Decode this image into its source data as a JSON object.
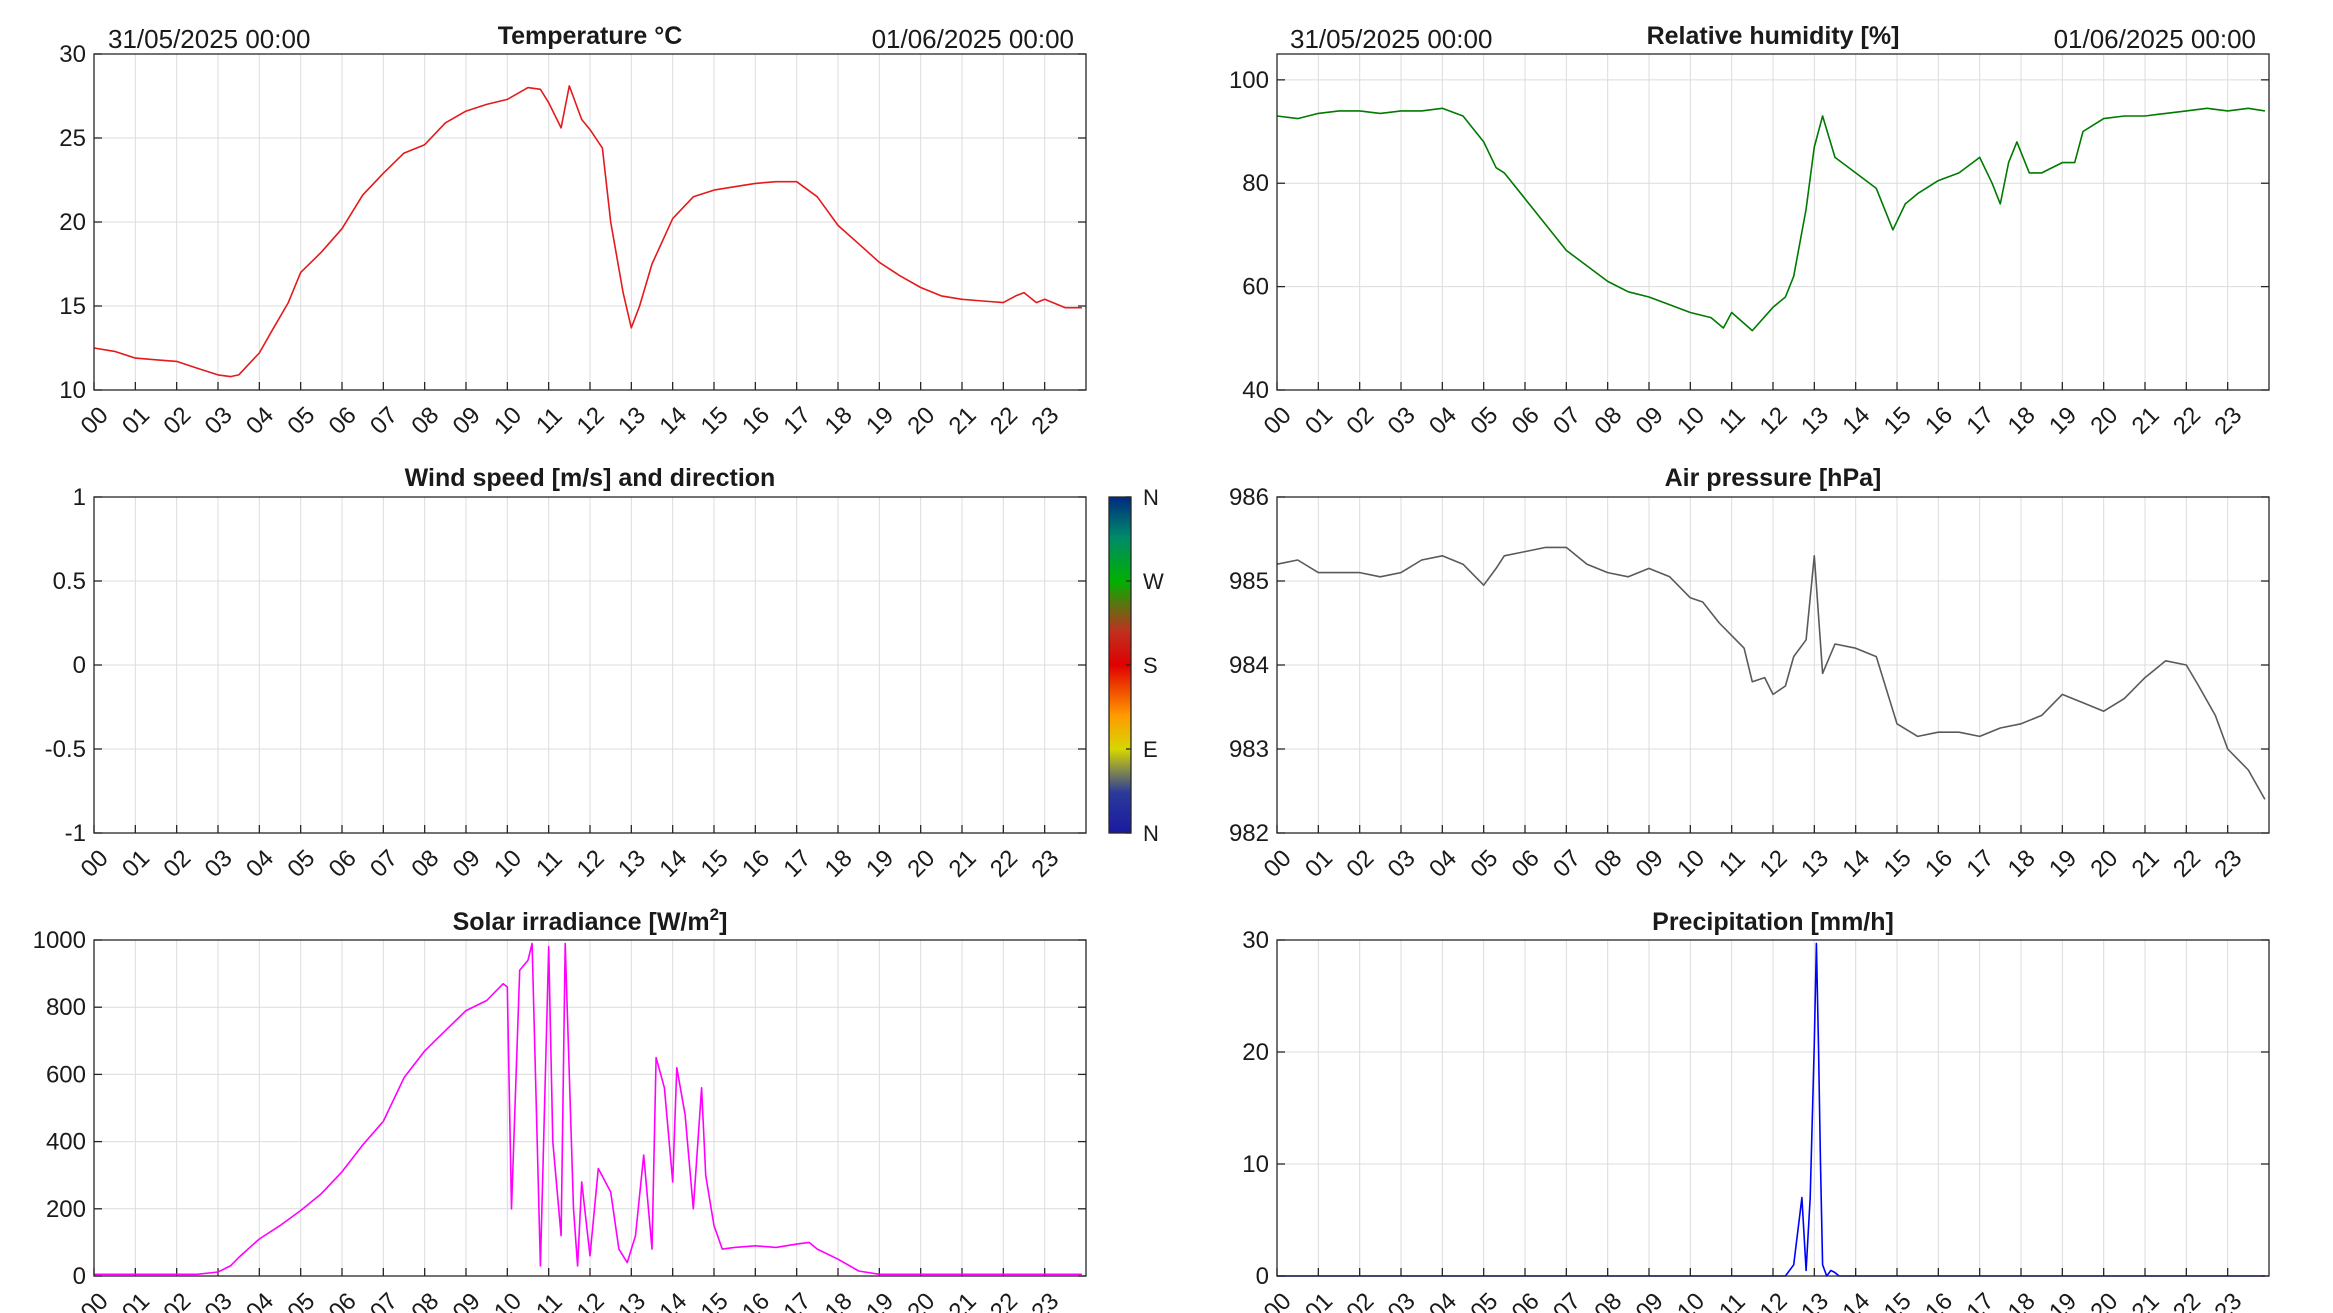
{
  "header": {
    "left_start": "31/05/2025 00:00",
    "left_end": "01/06/2025 00:00",
    "right_start": "31/05/2025 00:00",
    "right_end": "01/06/2025 00:00"
  },
  "hours": [
    "00",
    "01",
    "02",
    "03",
    "04",
    "05",
    "06",
    "07",
    "08",
    "09",
    "10",
    "11",
    "12",
    "13",
    "14",
    "15",
    "16",
    "17",
    "18",
    "19",
    "20",
    "21",
    "22",
    "23"
  ],
  "compass": [
    "N",
    "E",
    "S",
    "W",
    "N"
  ],
  "chart_data": [
    {
      "id": "temp",
      "type": "line",
      "title": "Temperature °C",
      "color": "#e41a1c",
      "ylim": [
        10,
        30
      ],
      "yticks": [
        10,
        15,
        20,
        25,
        30
      ],
      "yticklabels": [
        "10",
        "15",
        "20",
        "25",
        "30"
      ],
      "x_unit": "hour",
      "x": [
        0,
        0.5,
        1,
        1.5,
        2,
        2.5,
        3,
        3.3,
        3.5,
        4,
        4.3,
        4.7,
        5,
        5.5,
        6,
        6.5,
        7,
        7.5,
        8,
        8.5,
        9,
        9.5,
        10,
        10.5,
        10.8,
        11,
        11.3,
        11.5,
        11.8,
        12,
        12.3,
        12.5,
        12.8,
        13,
        13.2,
        13.5,
        14,
        14.5,
        15,
        15.5,
        16,
        16.5,
        17,
        17.5,
        18,
        18.5,
        19,
        19.5,
        20,
        20.5,
        21,
        21.5,
        22,
        22.3,
        22.5,
        22.8,
        23,
        23.5,
        23.9
      ],
      "y": [
        12.5,
        12.3,
        11.9,
        11.8,
        11.7,
        11.3,
        10.9,
        10.8,
        10.9,
        12.2,
        13.5,
        15.2,
        17.0,
        18.2,
        19.6,
        21.6,
        22.9,
        24.1,
        24.6,
        25.9,
        26.6,
        27.0,
        27.3,
        28.0,
        27.9,
        27.1,
        25.6,
        28.1,
        26.1,
        25.5,
        24.4,
        20.0,
        15.8,
        13.7,
        15.0,
        17.5,
        20.2,
        21.5,
        21.9,
        22.1,
        22.3,
        22.4,
        22.4,
        21.5,
        19.8,
        18.7,
        17.6,
        16.8,
        16.1,
        15.6,
        15.4,
        15.3,
        15.2,
        15.6,
        15.8,
        15.2,
        15.4,
        14.9,
        14.9
      ]
    },
    {
      "id": "humidity",
      "type": "line",
      "title": "Relative humidity [%]",
      "color": "#007a00",
      "ylim": [
        40,
        105
      ],
      "yticks": [
        40,
        60,
        80,
        100
      ],
      "yticklabels": [
        "40",
        "60",
        "80",
        "100"
      ],
      "x_unit": "hour",
      "x": [
        0,
        0.5,
        1,
        1.5,
        2,
        2.5,
        3,
        3.5,
        4,
        4.5,
        5,
        5.3,
        5.5,
        6,
        6.5,
        7,
        7.5,
        8,
        8.5,
        9,
        9.5,
        10,
        10.5,
        10.8,
        11,
        11.5,
        12,
        12.3,
        12.5,
        12.8,
        13,
        13.2,
        13.5,
        14,
        14.5,
        14.9,
        15.2,
        15.5,
        16,
        16.5,
        17,
        17.3,
        17.5,
        17.7,
        17.9,
        18.2,
        18.5,
        19,
        19.3,
        19.5,
        20,
        20.5,
        21,
        21.5,
        22,
        22.5,
        23,
        23.5,
        23.9
      ],
      "y": [
        93,
        92.5,
        93.5,
        94,
        94,
        93.5,
        94,
        94,
        94.5,
        93,
        88,
        83,
        82,
        77,
        72,
        67,
        64,
        61,
        59,
        58,
        56.5,
        55,
        54,
        52,
        55,
        51.5,
        56,
        58,
        62,
        75,
        87,
        93,
        85,
        82,
        79,
        71,
        76,
        78,
        80.5,
        82,
        85,
        80,
        76,
        84,
        88,
        82,
        82,
        84,
        84,
        90,
        92.5,
        93,
        93,
        93.5,
        94,
        94.5,
        94,
        94.5,
        94
      ]
    },
    {
      "id": "wind",
      "type": "line",
      "title": "Wind speed [m/s] and direction",
      "ylim": [
        -1,
        1
      ],
      "yticks": [
        -1,
        -0.5,
        0,
        0.5,
        1
      ],
      "yticklabels": [
        "-1",
        "-0.5",
        "0",
        "0.5",
        "1"
      ],
      "x_unit": "hour",
      "x": [],
      "y": []
    },
    {
      "id": "pressure",
      "type": "line",
      "title": "Air pressure [hPa]",
      "color": "#5a5a5a",
      "ylim": [
        982,
        986
      ],
      "yticks": [
        982,
        983,
        984,
        985,
        986
      ],
      "yticklabels": [
        "982",
        "983",
        "984",
        "985",
        "986"
      ],
      "x_unit": "hour",
      "x": [
        0,
        0.5,
        1,
        1.5,
        2,
        2.5,
        3,
        3.5,
        4,
        4.5,
        5,
        5.3,
        5.5,
        6,
        6.5,
        7,
        7.5,
        8,
        8.5,
        9,
        9.5,
        10,
        10.3,
        10.7,
        11,
        11.3,
        11.5,
        11.8,
        12,
        12.3,
        12.5,
        12.8,
        13,
        13.2,
        13.5,
        14,
        14.5,
        15,
        15.5,
        16,
        16.5,
        17,
        17.5,
        18,
        18.5,
        19,
        19.5,
        20,
        20.5,
        21,
        21.5,
        22,
        22.3,
        22.7,
        23,
        23.5,
        23.9
      ],
      "y": [
        985.2,
        985.25,
        985.1,
        985.1,
        985.1,
        985.05,
        985.1,
        985.25,
        985.3,
        985.2,
        984.95,
        985.15,
        985.3,
        985.35,
        985.4,
        985.4,
        985.2,
        985.1,
        985.05,
        985.15,
        985.05,
        984.8,
        984.75,
        984.5,
        984.35,
        984.2,
        983.8,
        983.85,
        983.65,
        983.75,
        984.1,
        984.3,
        985.3,
        983.9,
        984.25,
        984.2,
        984.1,
        983.3,
        983.15,
        983.2,
        983.2,
        983.15,
        983.25,
        983.3,
        983.4,
        983.65,
        983.55,
        983.45,
        983.6,
        983.85,
        984.05,
        984.0,
        983.75,
        983.4,
        983.0,
        982.75,
        982.4
      ]
    },
    {
      "id": "solar",
      "type": "line",
      "title": "Solar irradiance [W/m²]",
      "title_main": "Solar irradiance [W/m",
      "title_sup": "2",
      "title_end": "]",
      "color": "#ff00ff",
      "ylim": [
        0,
        1000
      ],
      "yticks": [
        0,
        200,
        400,
        600,
        800,
        1000
      ],
      "yticklabels": [
        "0",
        "200",
        "400",
        "600",
        "800",
        "1000"
      ],
      "x_unit": "hour",
      "x": [
        0,
        1,
        2,
        2.5,
        3,
        3.3,
        3.5,
        4,
        4.5,
        5,
        5.5,
        6,
        6.5,
        7,
        7.5,
        8,
        8.5,
        9,
        9.5,
        9.9,
        10,
        10.1,
        10.3,
        10.5,
        10.6,
        10.8,
        11,
        11.1,
        11.3,
        11.4,
        11.6,
        11.7,
        11.8,
        12,
        12.2,
        12.5,
        12.7,
        12.9,
        13.1,
        13.3,
        13.5,
        13.6,
        13.8,
        14,
        14.1,
        14.3,
        14.5,
        14.7,
        14.8,
        15,
        15.2,
        15.5,
        16,
        16.5,
        17,
        17.3,
        17.5,
        18,
        18.5,
        19,
        20,
        21,
        22,
        23,
        23.9
      ],
      "y": [
        5,
        5,
        5,
        5,
        12,
        30,
        55,
        110,
        150,
        195,
        245,
        310,
        390,
        460,
        590,
        670,
        730,
        790,
        820,
        870,
        860,
        200,
        910,
        940,
        990,
        30,
        980,
        400,
        120,
        990,
        200,
        30,
        280,
        60,
        320,
        250,
        80,
        40,
        120,
        360,
        80,
        650,
        560,
        280,
        620,
        480,
        200,
        560,
        300,
        150,
        80,
        85,
        90,
        85,
        95,
        100,
        80,
        50,
        15,
        5,
        5,
        5,
        5,
        5,
        5
      ]
    },
    {
      "id": "precip",
      "type": "line",
      "title": "Precipitation [mm/h]",
      "color": "#0000ff",
      "ylim": [
        0,
        30
      ],
      "yticks": [
        0,
        10,
        20,
        30
      ],
      "yticklabels": [
        "0",
        "10",
        "20",
        "30"
      ],
      "x_unit": "hour",
      "x": [
        0,
        12.3,
        12.5,
        12.7,
        12.8,
        12.9,
        13.0,
        13.05,
        13.1,
        13.15,
        13.2,
        13.3,
        13.4,
        13.5,
        13.6,
        14,
        23.9
      ],
      "y": [
        0,
        0,
        1,
        7,
        0.5,
        7,
        20.8,
        29.7,
        20.5,
        10,
        1,
        0,
        0.5,
        0.3,
        0,
        0,
        0
      ]
    }
  ]
}
